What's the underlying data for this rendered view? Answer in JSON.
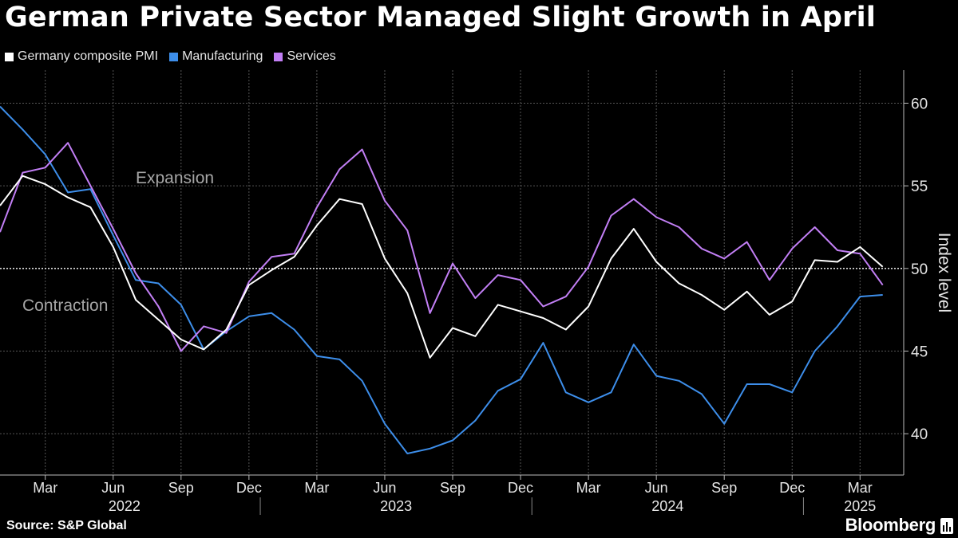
{
  "title": "German Private Sector Managed Slight Growth in April",
  "legend": [
    {
      "name": "Germany composite PMI",
      "color": "#ffffff"
    },
    {
      "name": "Manufacturing",
      "color": "#3d8eea"
    },
    {
      "name": "Services",
      "color": "#c27ff5"
    }
  ],
  "source": "Source: S&P Global",
  "brand": "Bloomberg",
  "brand_icon": "bloomberg-terminal-icon",
  "chart_data": {
    "type": "line",
    "ylabel": "Index level",
    "ylim": [
      37.5,
      62
    ],
    "yticks": [
      40,
      45,
      50,
      55,
      60
    ],
    "reference_line": 50,
    "grid": true,
    "annotations": [
      "Expansion",
      "Contraction"
    ],
    "month_labels": [
      "Mar",
      "Jun",
      "Sep",
      "Dec",
      "Mar",
      "Jun",
      "Sep",
      "Dec",
      "Mar",
      "Jun",
      "Sep",
      "Dec",
      "Mar"
    ],
    "year_labels": [
      "2022",
      "2023",
      "2024",
      "2025"
    ],
    "x": [
      "2022-01",
      "2022-02",
      "2022-03",
      "2022-04",
      "2022-05",
      "2022-06",
      "2022-07",
      "2022-08",
      "2022-09",
      "2022-10",
      "2022-11",
      "2022-12",
      "2023-01",
      "2023-02",
      "2023-03",
      "2023-04",
      "2023-05",
      "2023-06",
      "2023-07",
      "2023-08",
      "2023-09",
      "2023-10",
      "2023-11",
      "2023-12",
      "2024-01",
      "2024-02",
      "2024-03",
      "2024-04",
      "2024-05",
      "2024-06",
      "2024-07",
      "2024-08",
      "2024-09",
      "2024-10",
      "2024-11",
      "2024-12",
      "2025-01",
      "2025-02",
      "2025-03",
      "2025-04"
    ],
    "series": [
      {
        "name": "Germany composite PMI",
        "color": "#ffffff",
        "values": [
          53.8,
          55.6,
          55.1,
          54.3,
          53.7,
          51.3,
          48.1,
          46.9,
          45.7,
          45.1,
          46.3,
          49.0,
          49.9,
          50.7,
          52.6,
          54.2,
          53.9,
          50.6,
          48.5,
          44.6,
          46.4,
          45.9,
          47.8,
          47.4,
          47.0,
          46.3,
          47.7,
          50.6,
          52.4,
          50.4,
          49.1,
          48.4,
          47.5,
          48.6,
          47.2,
          48.0,
          50.5,
          50.4,
          51.3,
          50.1
        ]
      },
      {
        "name": "Manufacturing",
        "color": "#3d8eea",
        "values": [
          59.8,
          58.4,
          56.9,
          54.6,
          54.8,
          52.0,
          49.3,
          49.1,
          47.8,
          45.1,
          46.2,
          47.1,
          47.3,
          46.3,
          44.7,
          44.5,
          43.2,
          40.6,
          38.8,
          39.1,
          39.6,
          40.8,
          42.6,
          43.3,
          45.5,
          42.5,
          41.9,
          42.5,
          45.4,
          43.5,
          43.2,
          42.4,
          40.6,
          43.0,
          43.0,
          42.5,
          45.0,
          46.5,
          48.3,
          48.4
        ]
      },
      {
        "name": "Services",
        "color": "#c27ff5",
        "values": [
          52.2,
          55.8,
          56.1,
          57.6,
          55.0,
          52.4,
          49.7,
          47.7,
          45.0,
          46.5,
          46.1,
          49.2,
          50.7,
          50.9,
          53.7,
          56.0,
          57.2,
          54.1,
          52.3,
          47.3,
          50.3,
          48.2,
          49.6,
          49.3,
          47.7,
          48.3,
          50.1,
          53.2,
          54.2,
          53.1,
          52.5,
          51.2,
          50.6,
          51.6,
          49.3,
          51.2,
          52.5,
          51.1,
          50.9,
          49.0
        ]
      }
    ]
  }
}
